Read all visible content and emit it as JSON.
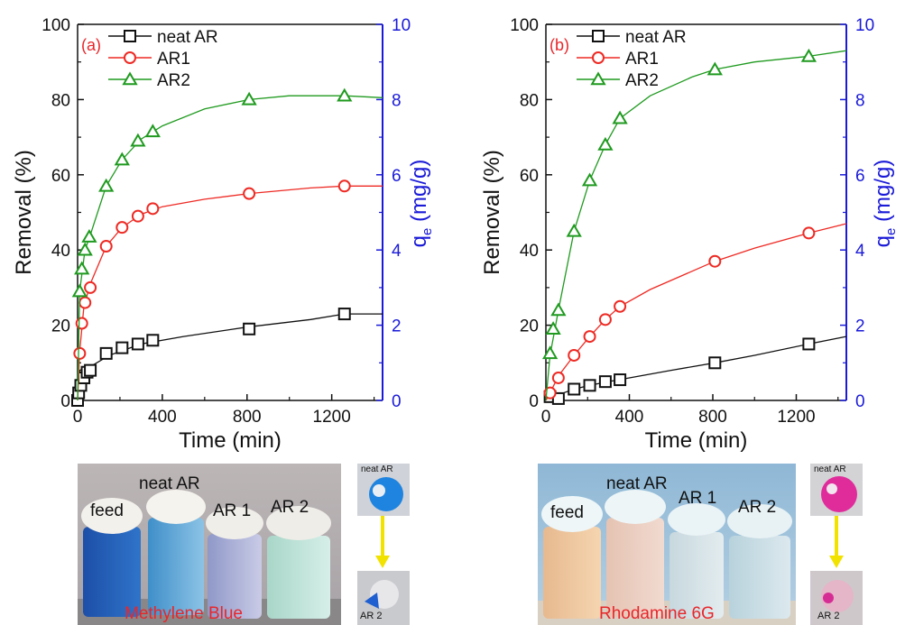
{
  "colors": {
    "black": "#111111",
    "red": "#ee2a24",
    "green": "#1f9a1f",
    "blue": "#1a1ad8",
    "panel_label": "#e8262a",
    "caption": "#e8262a",
    "arrow": "#f2e200"
  },
  "chart_data": [
    {
      "type": "line",
      "panel_label": "(a)",
      "xlabel": "Time (min)",
      "ylabel": "Removal (%)",
      "y2label_main": "q",
      "y2label_sub": "e",
      "y2label_unit": " (mg/g)",
      "xlim": [
        0,
        1440
      ],
      "ylim": [
        0,
        100
      ],
      "y2lim": [
        0,
        10
      ],
      "xticks": [
        0,
        400,
        800,
        1200
      ],
      "yticks": [
        0,
        20,
        40,
        60,
        80,
        100
      ],
      "y2ticks": [
        0,
        2,
        4,
        6,
        8,
        10
      ],
      "legend_position": "top-left",
      "series": [
        {
          "name": "neat AR",
          "marker": "square",
          "color": "#111111",
          "points": [
            [
              0,
              0
            ],
            [
              5,
              2
            ],
            [
              15,
              4
            ],
            [
              30,
              6
            ],
            [
              45,
              7.5
            ],
            [
              60,
              8
            ],
            [
              135,
              12.5
            ],
            [
              210,
              14
            ],
            [
              285,
              15
            ],
            [
              355,
              16
            ],
            [
              810,
              19
            ],
            [
              1260,
              23
            ]
          ],
          "curve": [
            [
              0,
              0
            ],
            [
              10,
              8
            ],
            [
              60,
              9
            ],
            [
              150,
              12
            ],
            [
              300,
              15
            ],
            [
              500,
              17
            ],
            [
              800,
              19.5
            ],
            [
              1100,
              21.5
            ],
            [
              1260,
              23
            ],
            [
              1440,
              23
            ]
          ]
        },
        {
          "name": "AR1",
          "marker": "circle",
          "color": "#ee2a24",
          "points": [
            [
              10,
              12.5
            ],
            [
              20,
              20.5
            ],
            [
              35,
              26
            ],
            [
              60,
              30
            ],
            [
              135,
              41
            ],
            [
              210,
              46
            ],
            [
              285,
              49
            ],
            [
              355,
              51
            ],
            [
              810,
              55
            ],
            [
              1260,
              57
            ]
          ],
          "curve": [
            [
              0,
              0
            ],
            [
              10,
              13
            ],
            [
              30,
              25
            ],
            [
              60,
              31
            ],
            [
              135,
              41
            ],
            [
              210,
              46
            ],
            [
              300,
              49.5
            ],
            [
              400,
              51.5
            ],
            [
              600,
              53.5
            ],
            [
              810,
              55
            ],
            [
              1100,
              56.5
            ],
            [
              1260,
              57
            ],
            [
              1440,
              57
            ]
          ]
        },
        {
          "name": "AR2",
          "marker": "triangle",
          "color": "#1f9a1f",
          "points": [
            [
              10,
              29
            ],
            [
              20,
              35
            ],
            [
              35,
              40
            ],
            [
              55,
              43.5
            ],
            [
              135,
              57
            ],
            [
              210,
              64
            ],
            [
              285,
              69
            ],
            [
              355,
              71.5
            ],
            [
              810,
              80
            ],
            [
              1260,
              81
            ]
          ],
          "curve": [
            [
              0,
              0
            ],
            [
              10,
              29
            ],
            [
              35,
              40
            ],
            [
              60,
              44
            ],
            [
              135,
              57
            ],
            [
              210,
              64
            ],
            [
              300,
              69.5
            ],
            [
              400,
              73
            ],
            [
              600,
              77.5
            ],
            [
              810,
              80
            ],
            [
              1000,
              81
            ],
            [
              1260,
              81
            ],
            [
              1440,
              80.5
            ]
          ]
        }
      ]
    },
    {
      "type": "line",
      "panel_label": "(b)",
      "xlabel": "Time (min)",
      "ylabel": "Removal (%)",
      "y2label_main": "q",
      "y2label_sub": "e",
      "y2label_unit": " (mg/g)",
      "xlim": [
        0,
        1440
      ],
      "ylim": [
        0,
        100
      ],
      "y2lim": [
        0,
        10
      ],
      "xticks": [
        0,
        400,
        800,
        1200
      ],
      "yticks": [
        0,
        20,
        40,
        60,
        80,
        100
      ],
      "y2ticks": [
        0,
        2,
        4,
        6,
        8,
        10
      ],
      "legend_position": "top-left",
      "series": [
        {
          "name": "neat AR",
          "marker": "square",
          "color": "#111111",
          "points": [
            [
              20,
              1
            ],
            [
              60,
              0.5
            ],
            [
              135,
              3
            ],
            [
              210,
              4
            ],
            [
              285,
              5
            ],
            [
              355,
              5.5
            ],
            [
              810,
              10
            ],
            [
              1260,
              15
            ]
          ],
          "curve": [
            [
              0,
              0
            ],
            [
              60,
              1.5
            ],
            [
              135,
              3
            ],
            [
              210,
              4
            ],
            [
              300,
              5
            ],
            [
              400,
              6
            ],
            [
              600,
              8
            ],
            [
              810,
              10
            ],
            [
              1000,
              12
            ],
            [
              1260,
              15
            ],
            [
              1440,
              17
            ]
          ]
        },
        {
          "name": "AR1",
          "marker": "circle",
          "color": "#ee2a24",
          "points": [
            [
              20,
              2
            ],
            [
              60,
              6
            ],
            [
              135,
              12
            ],
            [
              210,
              17
            ],
            [
              285,
              21.5
            ],
            [
              355,
              25
            ],
            [
              810,
              37
            ],
            [
              1260,
              44.5
            ]
          ],
          "curve": [
            [
              0,
              0
            ],
            [
              20,
              2
            ],
            [
              60,
              6.5
            ],
            [
              135,
              12
            ],
            [
              210,
              17
            ],
            [
              285,
              21.5
            ],
            [
              355,
              25
            ],
            [
              500,
              29.5
            ],
            [
              810,
              37
            ],
            [
              1000,
              40.5
            ],
            [
              1260,
              44.5
            ],
            [
              1440,
              47
            ]
          ]
        },
        {
          "name": "AR2",
          "marker": "triangle",
          "color": "#1f9a1f",
          "points": [
            [
              20,
              12.5
            ],
            [
              35,
              19
            ],
            [
              60,
              24
            ],
            [
              135,
              45
            ],
            [
              210,
              58.5
            ],
            [
              285,
              68
            ],
            [
              355,
              75
            ],
            [
              810,
              88
            ],
            [
              1260,
              91.5
            ]
          ],
          "curve": [
            [
              0,
              0
            ],
            [
              20,
              12
            ],
            [
              60,
              24
            ],
            [
              135,
              45
            ],
            [
              210,
              58.5
            ],
            [
              285,
              68
            ],
            [
              355,
              75
            ],
            [
              500,
              81
            ],
            [
              700,
              86
            ],
            [
              810,
              88
            ],
            [
              1000,
              90
            ],
            [
              1260,
              91.5
            ],
            [
              1440,
              93
            ]
          ]
        }
      ]
    }
  ],
  "photos": {
    "a": {
      "vial_labels": [
        "feed",
        "neat AR",
        "AR 1",
        "AR 2"
      ],
      "caption": "Methylene Blue",
      "small_top": "neat AR",
      "small_bottom": "AR 2"
    },
    "b": {
      "vial_labels": [
        "feed",
        "neat AR",
        "AR 1",
        "AR 2"
      ],
      "caption": "Rhodamine 6G",
      "small_top": "neat AR",
      "small_bottom": "AR 2"
    }
  }
}
